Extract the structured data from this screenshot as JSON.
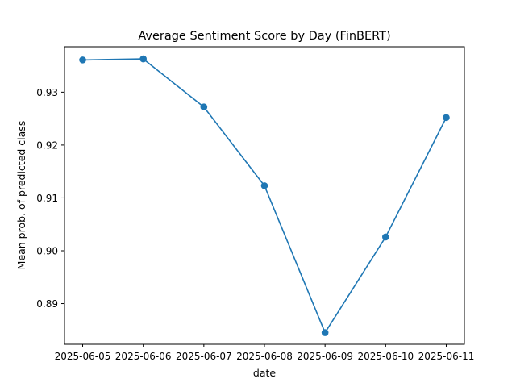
{
  "chart_data": {
    "type": "line",
    "title": "Average Sentiment Score by Day (FinBERT)",
    "xlabel": "date",
    "ylabel": "Mean prob. of predicted class",
    "x": [
      "2025-06-05",
      "2025-06-06",
      "2025-06-07",
      "2025-06-08",
      "2025-06-09",
      "2025-06-10",
      "2025-06-11"
    ],
    "series": [
      {
        "values": [
          0.9361,
          0.9363,
          0.9272,
          0.9123,
          0.8845,
          0.9026,
          0.9252
        ],
        "color": "#1f77b4",
        "marker": "circle"
      }
    ],
    "ylim": [
      0.8823,
      0.9386
    ],
    "yticks": [
      0.89,
      0.9,
      0.91,
      0.92,
      0.93
    ],
    "ytick_labels": [
      "0.89",
      "0.90",
      "0.91",
      "0.92",
      "0.93"
    ],
    "grid": false,
    "legend": "none"
  }
}
